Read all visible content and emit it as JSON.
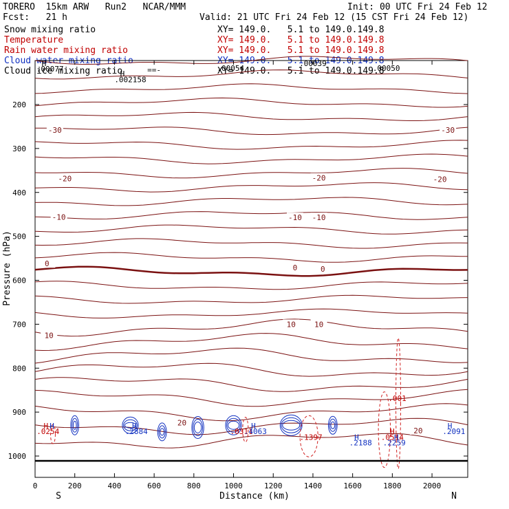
{
  "header": {
    "title_left": "TORERO  15km ARW   Run2   NCAR/MMM",
    "init": "Init: 00 UTC Fri 24 Feb 12",
    "fcst": "Fcst:   21 h",
    "valid": "Valid: 21 UTC Fri 24 Feb 12 (15 CST Fri 24 Feb 12)"
  },
  "legend": [
    {
      "name": "Snow mixing ratio",
      "xy": "XY= 149.0.   5.1 to 149.0.149.8",
      "color": "#000000"
    },
    {
      "name": "Temperature",
      "xy": "XY= 149.0.   5.1 to 149.0.149.8",
      "color": "#c00000"
    },
    {
      "name": "Rain water mixing ratio",
      "xy": "XY= 149.0.   5.1 to 149.0.149.8",
      "color": "#c00000"
    },
    {
      "name": "Cloud water mixing ratio",
      "xy": "XY= 149.0.   5.1 to 149.0.149.8",
      "color": "#1030c0"
    },
    {
      "name": "Cloud ice mixing ratio",
      "xy": "XY= 149.0.   5.1 to 149.0.149.8",
      "color": "#000000"
    }
  ],
  "chart_data": {
    "type": "contour-cross-section",
    "xlabel": "Distance (km)",
    "ylabel": "Pressure (hPa)",
    "xlim": [
      0,
      2180
    ],
    "ylim": [
      1050,
      100
    ],
    "x_ticks": [
      "0",
      "200",
      "400",
      "600",
      "800",
      "1000",
      "1200",
      "1400",
      "1600",
      "1800",
      "2000"
    ],
    "y_ticks": [
      "200",
      "300",
      "400",
      "500",
      "600",
      "700",
      "800",
      "900",
      "1000"
    ],
    "endpoints": {
      "left": "S",
      "right": "N"
    },
    "temperature_labels": [
      {
        "text": "-30",
        "x": 100,
        "p": 258
      },
      {
        "text": "-30",
        "x": 2080,
        "p": 258
      },
      {
        "text": "-20",
        "x": 150,
        "p": 368
      },
      {
        "text": "-20",
        "x": 1430,
        "p": 367
      },
      {
        "text": "-20",
        "x": 2040,
        "p": 370
      },
      {
        "text": "-10",
        "x": 120,
        "p": 456
      },
      {
        "text": "-10",
        "x": 1310,
        "p": 457
      },
      {
        "text": "-10",
        "x": 1430,
        "p": 457
      },
      {
        "text": "0",
        "x": 60,
        "p": 562
      },
      {
        "text": "0",
        "x": 1310,
        "p": 571
      },
      {
        "text": "0",
        "x": 1450,
        "p": 574
      },
      {
        "text": "10",
        "x": 70,
        "p": 725
      },
      {
        "text": "10",
        "x": 1290,
        "p": 700
      },
      {
        "text": "10",
        "x": 1430,
        "p": 700
      },
      {
        "text": "20",
        "x": 740,
        "p": 924
      },
      {
        "text": "20",
        "x": 1930,
        "p": 942
      }
    ],
    "annotations": [
      {
        "text": "H",
        "x": 45,
        "p": 112,
        "color": "#000000"
      },
      {
        "text": ".00077",
        "x": 75,
        "p": 125,
        "color": "#000000"
      },
      {
        "text": "==-",
        "x": 600,
        "p": 127,
        "color": "#000000"
      },
      {
        "text": "H",
        "x": 440,
        "p": 136,
        "color": "#000000"
      },
      {
        "text": ".002158",
        "x": 480,
        "p": 149,
        "color": "#000000"
      },
      {
        "text": ".00054",
        "x": 985,
        "p": 123,
        "color": "#000000"
      },
      {
        "text": ".00039",
        "x": 1400,
        "p": 112,
        "color": "#000000"
      },
      {
        "text": ".00050",
        "x": 1770,
        "p": 123,
        "color": "#000000"
      },
      {
        "text": "H",
        "x": 55,
        "p": 937,
        "color": "#c00000"
      },
      {
        "text": "H",
        "x": 85,
        "p": 937,
        "color": "#1030c0"
      },
      {
        "text": ".0254",
        "x": 65,
        "p": 950,
        "color": "#c00000"
      },
      {
        "text": "H",
        "x": 500,
        "p": 937,
        "color": "#1030c0"
      },
      {
        "text": ".2884",
        "x": 510,
        "p": 950,
        "color": "#1030c0"
      },
      {
        "text": ".0311",
        "x": 1040,
        "p": 950,
        "color": "#c00000"
      },
      {
        "text": "H",
        "x": 1100,
        "p": 937,
        "color": "#1030c0"
      },
      {
        "text": ".4063",
        "x": 1110,
        "p": 950,
        "color": "#1030c0"
      },
      {
        "text": ".1397",
        "x": 1390,
        "p": 963,
        "color": "#c00000"
      },
      {
        "text": ".001",
        "x": 1825,
        "p": 875,
        "color": "#c00000"
      },
      {
        "text": "H",
        "x": 1620,
        "p": 963,
        "color": "#1030c0"
      },
      {
        "text": ".2188",
        "x": 1640,
        "p": 976,
        "color": "#1030c0"
      },
      {
        "text": "H",
        "x": 1800,
        "p": 950,
        "color": "#c00000"
      },
      {
        "text": ".0514",
        "x": 1800,
        "p": 963,
        "color": "#c00000"
      },
      {
        "text": "H",
        "x": 1820,
        "p": 963,
        "color": "#1030c0"
      },
      {
        "text": ".2259",
        "x": 1810,
        "p": 976,
        "color": "#1030c0"
      },
      {
        "text": "H",
        "x": 2090,
        "p": 937,
        "color": "#1030c0"
      },
      {
        "text": ".2091",
        "x": 2110,
        "p": 950,
        "color": "#1030c0"
      }
    ],
    "colors": {
      "temperature": "#7a1010",
      "rain": "#d02020",
      "cloud_water": "#1030c0",
      "snow": "#000000",
      "ice": "#000000"
    }
  }
}
